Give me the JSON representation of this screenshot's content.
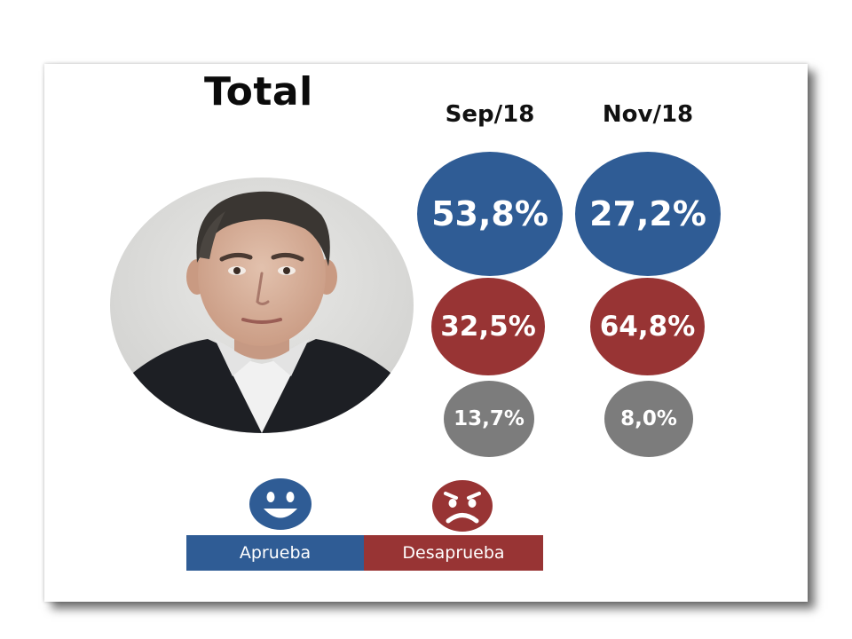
{
  "chart_data": {
    "type": "bubble",
    "title": "Total",
    "categories": [
      "Sep/18",
      "Nov/18"
    ],
    "series": [
      {
        "name": "Aprueba",
        "labels": [
          "53,8%",
          "27,2%"
        ],
        "values": [
          53.8,
          27.2
        ],
        "color": "#2f5c95"
      },
      {
        "name": "Desaprueba",
        "labels": [
          "32,5%",
          "64,8%"
        ],
        "values": [
          32.5,
          64.8
        ],
        "color": "#983434"
      },
      {
        "labels": [
          "13,7%",
          "8,0%"
        ],
        "values": [
          13.7,
          8.0
        ],
        "color": "#7c7c7c"
      }
    ],
    "legend": {
      "placement": "bottom-left",
      "items": [
        {
          "label": "Aprueba",
          "icon": "smiling-face-icon",
          "color": "#2f5c95"
        },
        {
          "label": "Desaprueba",
          "icon": "frowning-face-icon",
          "color": "#983434"
        }
      ]
    }
  }
}
